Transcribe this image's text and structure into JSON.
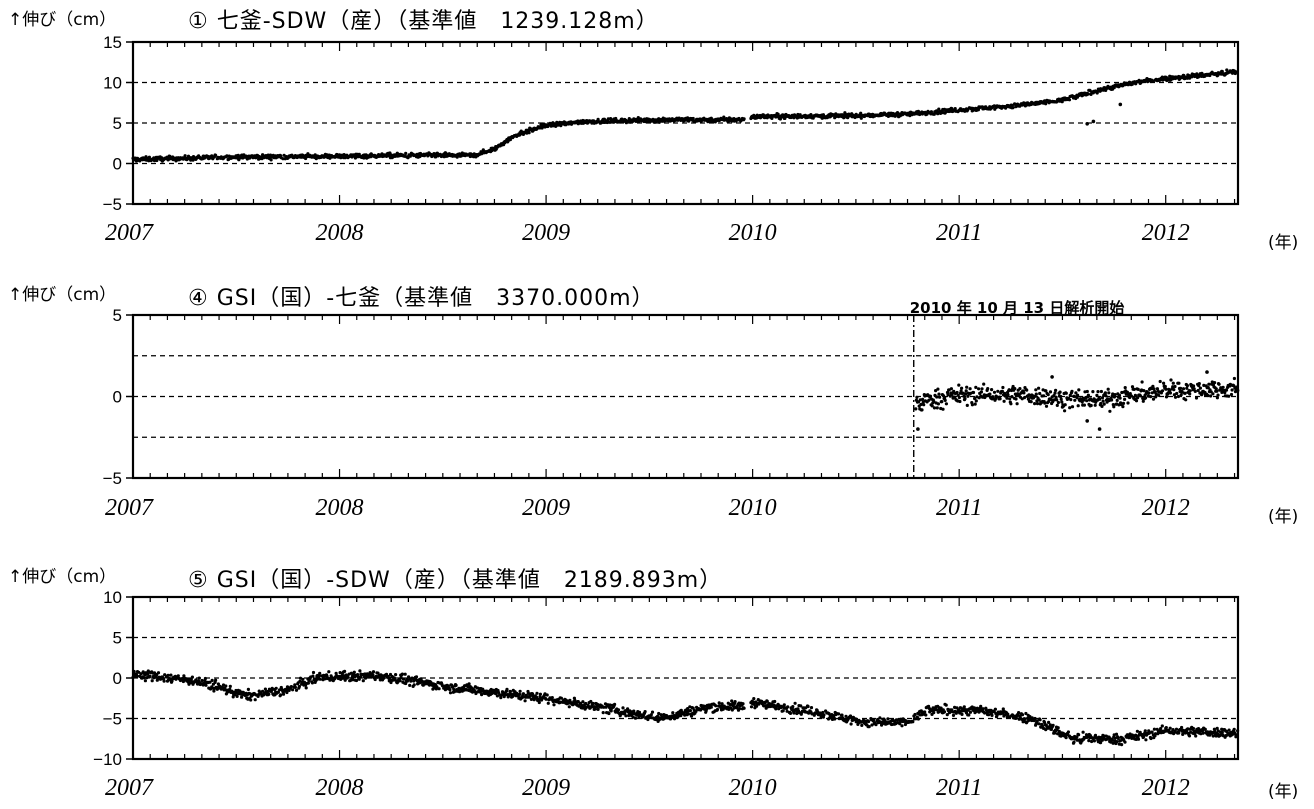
{
  "chart_data": [
    {
      "type": "scatter",
      "title": "① 七釜-SDW（産）（基準値　1239.128m）",
      "ylabel": "↑伸び（cm）",
      "xunit": "(年)",
      "xlim": [
        2007,
        2012.35
      ],
      "ylim": [
        -5,
        15
      ],
      "yticks": [
        "15",
        "10",
        "5",
        "0",
        "−5"
      ],
      "ytick_values": [
        15,
        10,
        5,
        0,
        -5
      ],
      "xticks": [
        "2007",
        "2008",
        "2009",
        "2010",
        "2011",
        "2012"
      ],
      "grid": "dashed horizontal at 0, 5, 10",
      "color": "#000000",
      "trend": [
        [
          2007.0,
          0.5
        ],
        [
          2007.5,
          0.8
        ],
        [
          2008.0,
          0.9
        ],
        [
          2008.3,
          1.0
        ],
        [
          2008.65,
          1.0
        ],
        [
          2008.75,
          1.8
        ],
        [
          2008.85,
          3.5
        ],
        [
          2009.0,
          4.7
        ],
        [
          2009.2,
          5.2
        ],
        [
          2009.6,
          5.4
        ],
        [
          2009.95,
          5.4
        ],
        [
          2010.0,
          5.8
        ],
        [
          2010.5,
          5.9
        ],
        [
          2010.75,
          6.1
        ],
        [
          2011.0,
          6.6
        ],
        [
          2011.3,
          7.2
        ],
        [
          2011.5,
          7.8
        ],
        [
          2011.7,
          9.2
        ],
        [
          2011.85,
          10.0
        ],
        [
          2012.0,
          10.5
        ],
        [
          2012.35,
          11.3
        ]
      ],
      "gaps": [
        [
          2009.96,
          2009.99
        ]
      ],
      "scatter": 0.25,
      "outliers": [
        [
          2011.62,
          4.9
        ],
        [
          2011.65,
          5.2
        ],
        [
          2011.78,
          7.3
        ]
      ]
    },
    {
      "type": "scatter",
      "title": "④ GSI（国）-七釜（基準値　3370.000m）",
      "ylabel": "↑伸び（cm）",
      "xunit": "(年)",
      "xlim": [
        2007,
        2012.35
      ],
      "ylim": [
        -5,
        5
      ],
      "yticks": [
        "5",
        "0",
        "−5"
      ],
      "ytick_values": [
        5,
        0,
        -5
      ],
      "xticks": [
        "2007",
        "2008",
        "2009",
        "2010",
        "2011",
        "2012"
      ],
      "grid": "dashed horizontal at 2.5, 0, -2.5",
      "annotation": "2010 年 10 月 13 日解析開始",
      "annotation_x": 2010.78,
      "color": "#000000",
      "trend": [
        [
          2010.79,
          -0.5
        ],
        [
          2010.85,
          -0.2
        ],
        [
          2011.0,
          0.1
        ],
        [
          2011.3,
          0.1
        ],
        [
          2011.5,
          -0.1
        ],
        [
          2011.7,
          -0.2
        ],
        [
          2011.85,
          0.1
        ],
        [
          2012.0,
          0.4
        ],
        [
          2012.35,
          0.5
        ]
      ],
      "gaps": [],
      "scatter": 0.55,
      "outliers": [
        [
          2010.8,
          -2.0
        ],
        [
          2011.68,
          -2.0
        ],
        [
          2011.62,
          -1.5
        ],
        [
          2012.2,
          1.5
        ],
        [
          2011.45,
          1.2
        ]
      ]
    },
    {
      "type": "scatter",
      "title": "⑤ GSI（国）-SDW（産）（基準値　2189.893m）",
      "ylabel": "↑伸び（cm）",
      "xunit": "(年)",
      "xlim": [
        2007,
        2012.35
      ],
      "ylim": [
        -10,
        10
      ],
      "yticks": [
        "10",
        "5",
        "0",
        "−5",
        "−10"
      ],
      "ytick_values": [
        10,
        5,
        0,
        -5,
        -10
      ],
      "xticks": [
        "2007",
        "2008",
        "2009",
        "2010",
        "2011",
        "2012"
      ],
      "grid": "dashed horizontal at 5, 0, -5",
      "color": "#000000",
      "trend": [
        [
          2007.0,
          0.5
        ],
        [
          2007.3,
          -0.3
        ],
        [
          2007.55,
          -2.2
        ],
        [
          2007.75,
          -1.5
        ],
        [
          2007.9,
          0.1
        ],
        [
          2008.2,
          0.3
        ],
        [
          2008.5,
          -1.0
        ],
        [
          2009.0,
          -2.5
        ],
        [
          2009.35,
          -4.0
        ],
        [
          2009.55,
          -5.0
        ],
        [
          2009.8,
          -3.5
        ],
        [
          2009.95,
          -3.5
        ],
        [
          2010.0,
          -3.0
        ],
        [
          2010.3,
          -4.2
        ],
        [
          2010.55,
          -5.5
        ],
        [
          2010.75,
          -5.5
        ],
        [
          2010.85,
          -4.0
        ],
        [
          2011.1,
          -4.0
        ],
        [
          2011.35,
          -5.0
        ],
        [
          2011.55,
          -7.5
        ],
        [
          2011.8,
          -7.5
        ],
        [
          2012.0,
          -6.5
        ],
        [
          2012.35,
          -6.8
        ]
      ],
      "gaps": [
        [
          2009.96,
          2009.99
        ]
      ],
      "scatter": 0.55,
      "outliers": []
    }
  ]
}
